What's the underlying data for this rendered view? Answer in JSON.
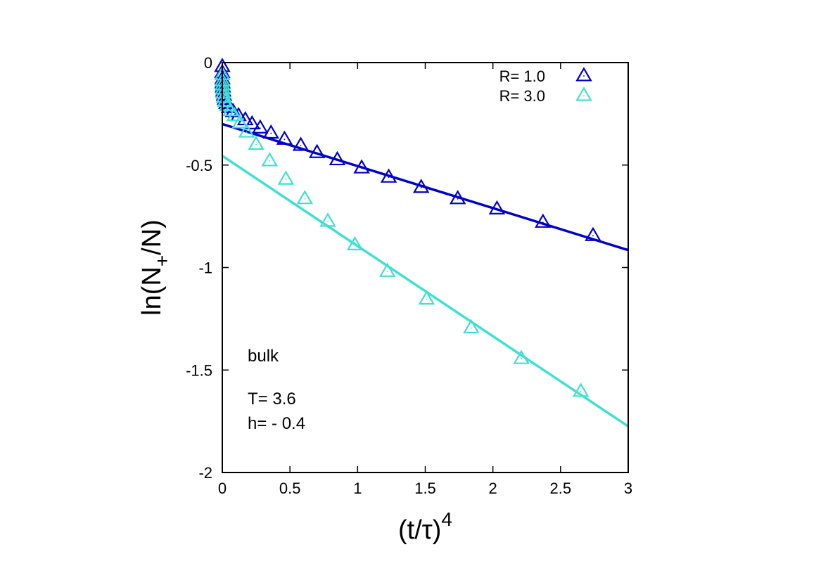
{
  "chart_data": {
    "type": "scatter",
    "title": "",
    "xlabel": {
      "base": "(t/τ)",
      "sup": "4"
    },
    "ylabel": {
      "pre": "ln(N",
      "sub": "+",
      "post": "/N)"
    },
    "xlim": [
      0,
      3
    ],
    "ylim": [
      -2,
      0
    ],
    "x_ticks": [
      "0",
      "0.5",
      "1",
      "1.5",
      "2",
      "2.5",
      "3"
    ],
    "y_ticks": [
      "-2",
      "-1.5",
      "-1",
      "-0.5",
      "0"
    ],
    "x_tick_values": [
      0,
      0.5,
      1,
      1.5,
      2,
      2.5,
      3
    ],
    "y_tick_values": [
      -2,
      -1.5,
      -1,
      -0.5,
      0
    ],
    "legend_position": "top-right",
    "annotations": [
      "bulk",
      "T= 3.6",
      "h= - 0.4"
    ],
    "series": [
      {
        "name": "R= 1.0",
        "color": "#0000cc",
        "marker": "triangle",
        "points": [
          [
            0.0,
            -0.02
          ],
          [
            0.0,
            -0.05
          ],
          [
            0.001,
            -0.08
          ],
          [
            0.002,
            -0.1
          ],
          [
            0.004,
            -0.12
          ],
          [
            0.007,
            -0.14
          ],
          [
            0.012,
            -0.16
          ],
          [
            0.02,
            -0.18
          ],
          [
            0.03,
            -0.2
          ],
          [
            0.05,
            -0.22
          ],
          [
            0.08,
            -0.24
          ],
          [
            0.12,
            -0.26
          ],
          [
            0.17,
            -0.28
          ],
          [
            0.22,
            -0.3
          ],
          [
            0.28,
            -0.32
          ],
          [
            0.36,
            -0.345
          ],
          [
            0.46,
            -0.375
          ],
          [
            0.58,
            -0.405
          ],
          [
            0.7,
            -0.44
          ],
          [
            0.85,
            -0.475
          ],
          [
            1.03,
            -0.515
          ],
          [
            1.23,
            -0.56
          ],
          [
            1.47,
            -0.61
          ],
          [
            1.74,
            -0.665
          ],
          [
            2.03,
            -0.715
          ],
          [
            2.37,
            -0.78
          ],
          [
            2.74,
            -0.845
          ]
        ],
        "fit": {
          "slope": -0.205,
          "intercept": -0.3
        }
      },
      {
        "name": "R= 3.0",
        "color": "#40e0d0",
        "marker": "triangle",
        "points": [
          [
            0.0,
            -0.06
          ],
          [
            0.001,
            -0.09
          ],
          [
            0.002,
            -0.11
          ],
          [
            0.004,
            -0.13
          ],
          [
            0.007,
            -0.15
          ],
          [
            0.012,
            -0.17
          ],
          [
            0.02,
            -0.19
          ],
          [
            0.035,
            -0.21
          ],
          [
            0.06,
            -0.235
          ],
          [
            0.09,
            -0.26
          ],
          [
            0.13,
            -0.295
          ],
          [
            0.18,
            -0.34
          ],
          [
            0.25,
            -0.4
          ],
          [
            0.35,
            -0.48
          ],
          [
            0.47,
            -0.57
          ],
          [
            0.61,
            -0.665
          ],
          [
            0.78,
            -0.775
          ],
          [
            0.98,
            -0.89
          ],
          [
            1.22,
            -1.02
          ],
          [
            1.51,
            -1.155
          ],
          [
            1.84,
            -1.295
          ],
          [
            2.21,
            -1.445
          ],
          [
            2.65,
            -1.605
          ]
        ],
        "fit": {
          "slope": -0.44,
          "intercept": -0.455
        }
      }
    ]
  }
}
